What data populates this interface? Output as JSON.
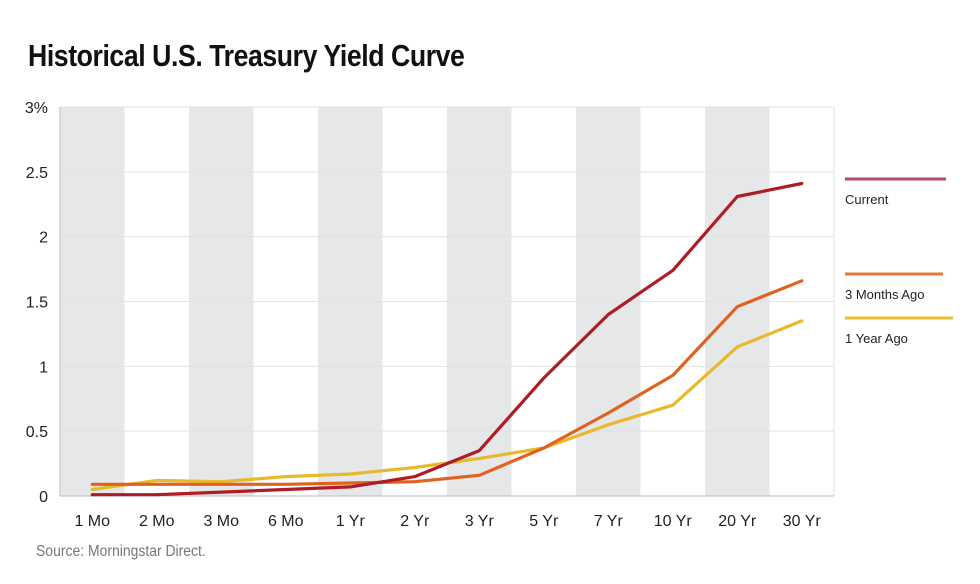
{
  "title": "Historical U.S. Treasury Yield Curve",
  "source": "Source: Morningstar Direct.",
  "colors": {
    "band": "#e6e7e9",
    "grid": "#e2e2e2",
    "axis": "#bdbdbd"
  },
  "chart_data": {
    "type": "line",
    "title": "Historical U.S. Treasury Yield Curve",
    "xlabel": "",
    "ylabel": "",
    "categories": [
      "1 Mo",
      "2 Mo",
      "3 Mo",
      "6 Mo",
      "1 Yr",
      "2 Yr",
      "3 Yr",
      "5 Yr",
      "7 Yr",
      "10 Yr",
      "20 Yr",
      "30 Yr"
    ],
    "ylim": [
      0,
      3
    ],
    "yticks": [
      0,
      0.5,
      1,
      1.5,
      2,
      2.5,
      3
    ],
    "ytick_labels": [
      "0",
      "0.5",
      "1",
      "1.5",
      "2",
      "2.5",
      "3%"
    ],
    "grid": true,
    "alternating_bands": true,
    "legend_position": "right",
    "series": [
      {
        "name": "Current",
        "color": "#b01c24",
        "legend_color": "#a8506a",
        "values": [
          0.01,
          0.01,
          0.03,
          0.05,
          0.07,
          0.15,
          0.35,
          0.91,
          1.4,
          1.74,
          2.31,
          2.41
        ]
      },
      {
        "name": "3 Months Ago",
        "color": "#e0621e",
        "legend_color": "#e07a36",
        "values": [
          0.09,
          0.09,
          0.09,
          0.09,
          0.1,
          0.11,
          0.16,
          0.37,
          0.64,
          0.93,
          1.46,
          1.66
        ]
      },
      {
        "name": "1 Year Ago",
        "color": "#e8b92a",
        "legend_color": "#e8c030",
        "values": [
          0.05,
          0.12,
          0.11,
          0.15,
          0.17,
          0.22,
          0.29,
          0.37,
          0.55,
          0.7,
          1.15,
          1.35
        ]
      }
    ]
  }
}
